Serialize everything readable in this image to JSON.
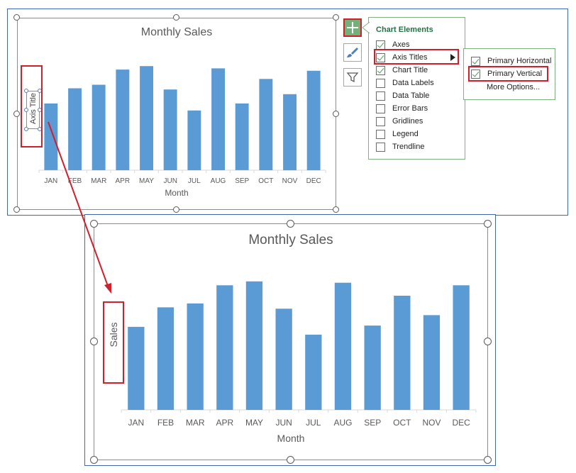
{
  "top_chart": {
    "title": "Monthly Sales",
    "x_axis_title": "Month",
    "y_axis_title": "Axis Title",
    "categories": [
      "JAN",
      "FEB",
      "MAR",
      "APR",
      "MAY",
      "JUN",
      "JUL",
      "AUG",
      "SEP",
      "OCT",
      "NOV",
      "DEC"
    ]
  },
  "bottom_chart": {
    "title": "Monthly Sales",
    "x_axis_title": "Month",
    "y_axis_title": "Sales",
    "categories": [
      "JAN",
      "FEB",
      "MAR",
      "APR",
      "MAY",
      "JUN",
      "JUL",
      "AUG",
      "SEP",
      "OCT",
      "NOV",
      "DEC"
    ]
  },
  "chart_data": [
    {
      "type": "bar",
      "title": "Monthly Sales",
      "xlabel": "Month",
      "ylabel": "Axis Title",
      "categories": [
        "JAN",
        "FEB",
        "MAR",
        "APR",
        "MAY",
        "JUN",
        "JUL",
        "AUG",
        "SEP",
        "OCT",
        "NOV",
        "DEC"
      ],
      "values": [
        0.57,
        0.7,
        0.73,
        0.86,
        0.89,
        0.69,
        0.51,
        0.87,
        0.57,
        0.78,
        0.65,
        0.85
      ],
      "bar_color": "#5b9bd5",
      "grid": false,
      "legend": "none"
    },
    {
      "type": "bar",
      "title": "Monthly Sales",
      "xlabel": "Month",
      "ylabel": "Sales",
      "categories": [
        "JAN",
        "FEB",
        "MAR",
        "APR",
        "MAY",
        "JUN",
        "JUL",
        "AUG",
        "SEP",
        "OCT",
        "NOV",
        "DEC"
      ],
      "values": [
        0.64,
        0.79,
        0.82,
        0.96,
        0.99,
        0.78,
        0.58,
        0.98,
        0.65,
        0.88,
        0.73,
        0.96
      ],
      "bar_color": "#5b9bd5",
      "grid": false,
      "legend": "none"
    }
  ],
  "chart_elements_panel": {
    "title": "Chart Elements",
    "items": [
      {
        "label": "Axes",
        "checked": true
      },
      {
        "label": "Axis Titles",
        "checked": true,
        "has_submenu": true
      },
      {
        "label": "Chart Title",
        "checked": true
      },
      {
        "label": "Data Labels",
        "checked": false
      },
      {
        "label": "Data Table",
        "checked": false
      },
      {
        "label": "Error Bars",
        "checked": false
      },
      {
        "label": "Gridlines",
        "checked": false
      },
      {
        "label": "Legend",
        "checked": false
      },
      {
        "label": "Trendline",
        "checked": false
      }
    ]
  },
  "axis_titles_submenu": {
    "items": [
      {
        "label": "Primary Horizontal",
        "checked": true
      },
      {
        "label": "Primary Vertical",
        "checked": true
      }
    ],
    "more_options": "More Options..."
  },
  "side_buttons": [
    "plus-icon",
    "brush-icon",
    "filter-icon"
  ],
  "colors": {
    "accent_red": "#d21f2c",
    "bar_blue": "#5b9bd5",
    "panel_green": "#217346",
    "plus_green": "#73b07a"
  }
}
